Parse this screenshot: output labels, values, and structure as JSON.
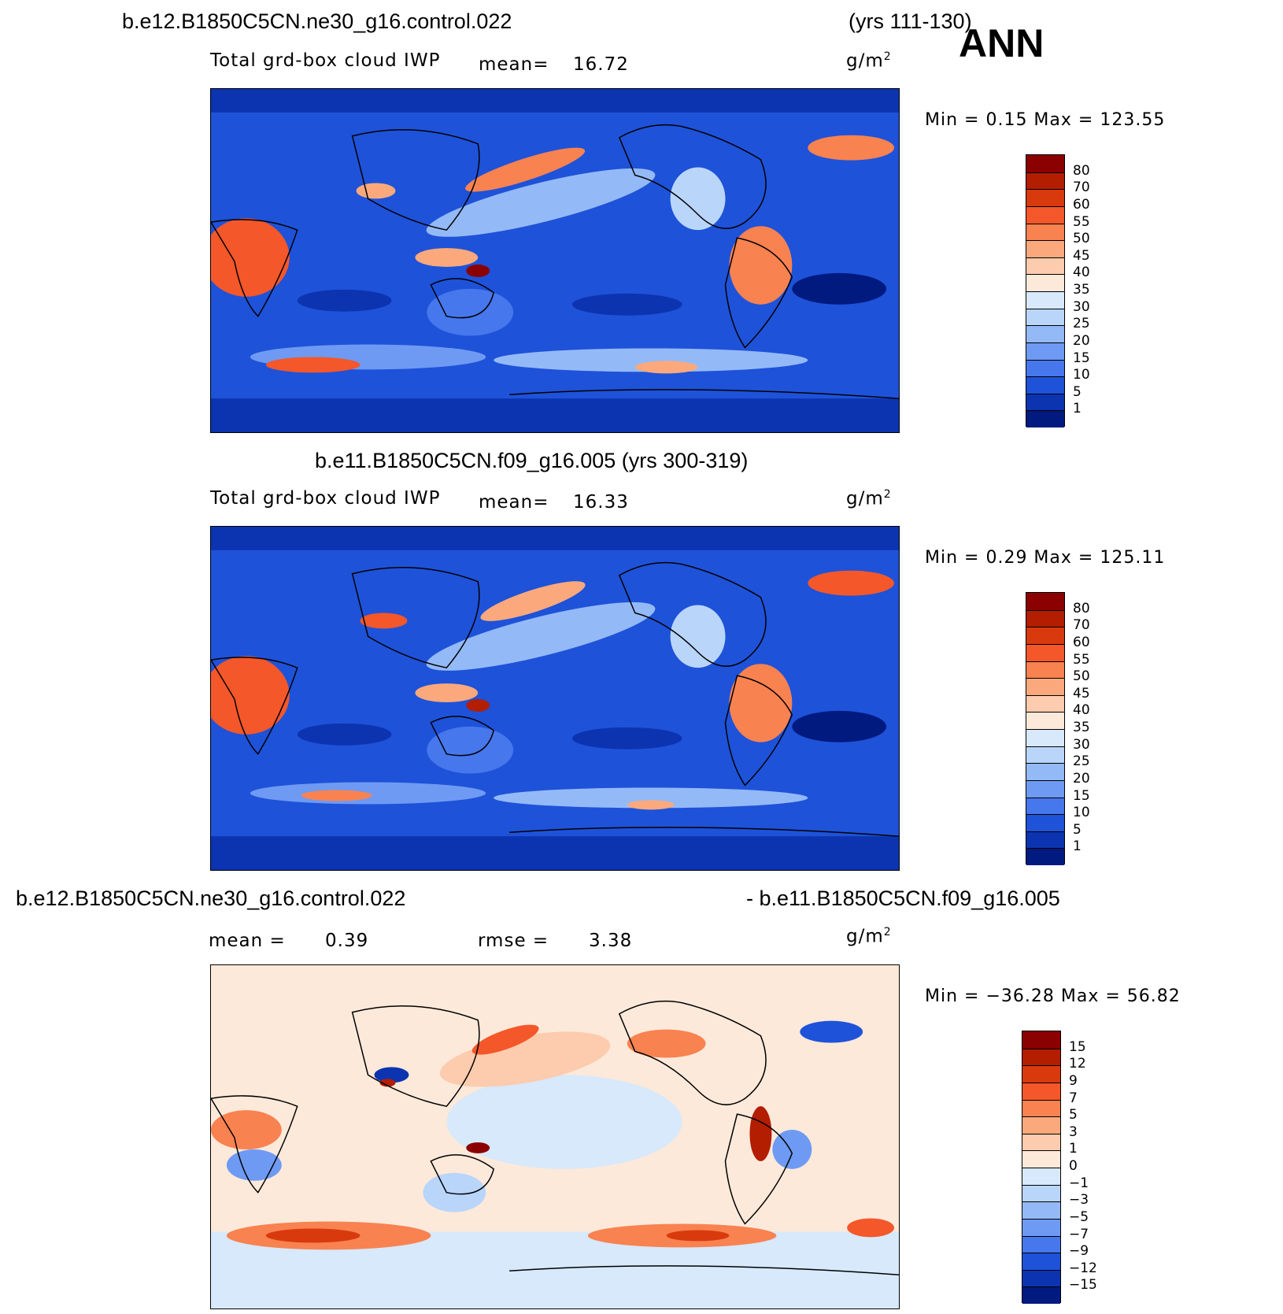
{
  "figure": {
    "season": "ANN",
    "panel1": {
      "case": "b.e12.B1850C5CN.ne30_g16.control.022",
      "years": "(yrs 111-130)",
      "variable": "Total grd-box cloud IWP",
      "mean_label": "mean=",
      "mean_value": "16.72",
      "units": "g/m",
      "units_sup": "2",
      "minmax": "Min =    0.15  Max  =  123.55"
    },
    "panel2": {
      "title": "b.e11.B1850C5CN.f09_g16.005 (yrs 300-319)",
      "variable": "Total grd-box cloud IWP",
      "mean_label": "mean=",
      "mean_value": "16.33",
      "units": "g/m",
      "units_sup": "2",
      "minmax": "Min =    0.29  Max  =  125.11"
    },
    "panel3": {
      "case_left": "b.e12.B1850C5CN.ne30_g16.control.022",
      "case_right": "- b.e11.B1850C5CN.f09_g16.005",
      "mean_label": "mean =",
      "mean_value": "0.39",
      "rmse_label": "rmse =",
      "rmse_value": "3.38",
      "units": "g/m",
      "units_sup": "2",
      "minmax": "Min = −36.28  Max  =   56.82"
    },
    "colorbar_abs": {
      "labels": [
        "80",
        "70",
        "60",
        "55",
        "50",
        "45",
        "40",
        "35",
        "30",
        "25",
        "20",
        "15",
        "10",
        "5",
        "1"
      ],
      "colors": [
        "#8b0000",
        "#b31d00",
        "#d83a0e",
        "#f4572a",
        "#f98251",
        "#fba97c",
        "#fdcbad",
        "#fde9da",
        "#d7e9fb",
        "#b9d5fa",
        "#94b9f7",
        "#6e9af3",
        "#4677ec",
        "#1e52d9",
        "#0c34b0",
        "#001a80"
      ]
    },
    "colorbar_diff": {
      "labels": [
        "15",
        "12",
        "9",
        "7",
        "5",
        "3",
        "1",
        "0",
        "−1",
        "−3",
        "−5",
        "−7",
        "−9",
        "−12",
        "−15"
      ],
      "colors": [
        "#8b0000",
        "#b31d00",
        "#d83a0e",
        "#f4572a",
        "#f98251",
        "#fba97c",
        "#fdcbad",
        "#fde9da",
        "#d7e9fb",
        "#b9d5fa",
        "#94b9f7",
        "#6e9af3",
        "#4677ec",
        "#1e52d9",
        "#0c34b0",
        "#001a80"
      ]
    }
  }
}
